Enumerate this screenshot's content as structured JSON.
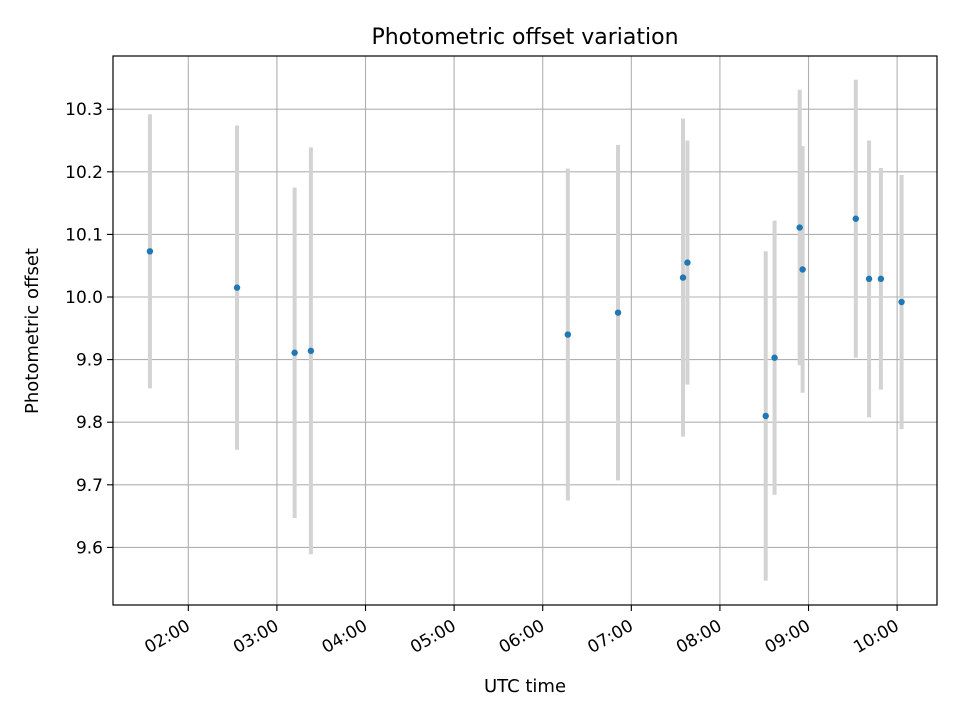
{
  "chart_data": {
    "type": "scatter",
    "title": "Photometric offset variation",
    "xlabel": "UTC time",
    "ylabel": "Photometric offset",
    "grid": true,
    "x_tick_labels": [
      "02:00",
      "03:00",
      "04:00",
      "05:00",
      "06:00",
      "07:00",
      "08:00",
      "09:00",
      "10:00"
    ],
    "y_ticks": [
      9.6,
      9.7,
      9.8,
      9.9,
      10.0,
      10.1,
      10.2,
      10.3
    ],
    "y_tick_labels": [
      "9.6",
      "9.7",
      "9.8",
      "9.9",
      "10.0",
      "10.1",
      "10.2",
      "10.3"
    ],
    "xlim": [
      "01:09",
      "10:27"
    ],
    "ylim": [
      9.508,
      10.385
    ],
    "marker_color": "#1f77b4",
    "errorbar_color": "#d3d3d3",
    "points": [
      {
        "time": "01:34",
        "y": 10.073,
        "err": 0.219
      },
      {
        "time": "02:33",
        "y": 10.015,
        "err": 0.259
      },
      {
        "time": "03:12",
        "y": 9.911,
        "err": 0.264
      },
      {
        "time": "03:23",
        "y": 9.914,
        "err": 0.325
      },
      {
        "time": "06:17",
        "y": 9.94,
        "err": 0.265
      },
      {
        "time": "06:51",
        "y": 9.975,
        "err": 0.268
      },
      {
        "time": "07:35",
        "y": 10.031,
        "err": 0.254
      },
      {
        "time": "07:38",
        "y": 10.055,
        "err": 0.195
      },
      {
        "time": "08:31",
        "y": 9.81,
        "err": 0.263
      },
      {
        "time": "08:37",
        "y": 9.903,
        "err": 0.219
      },
      {
        "time": "08:54",
        "y": 10.111,
        "err": 0.22
      },
      {
        "time": "08:56",
        "y": 10.044,
        "err": 0.197
      },
      {
        "time": "09:32",
        "y": 10.125,
        "err": 0.222
      },
      {
        "time": "09:41",
        "y": 10.029,
        "err": 0.221
      },
      {
        "time": "09:49",
        "y": 10.029,
        "err": 0.177
      },
      {
        "time": "10:03",
        "y": 9.992,
        "err": 0.203
      }
    ]
  }
}
